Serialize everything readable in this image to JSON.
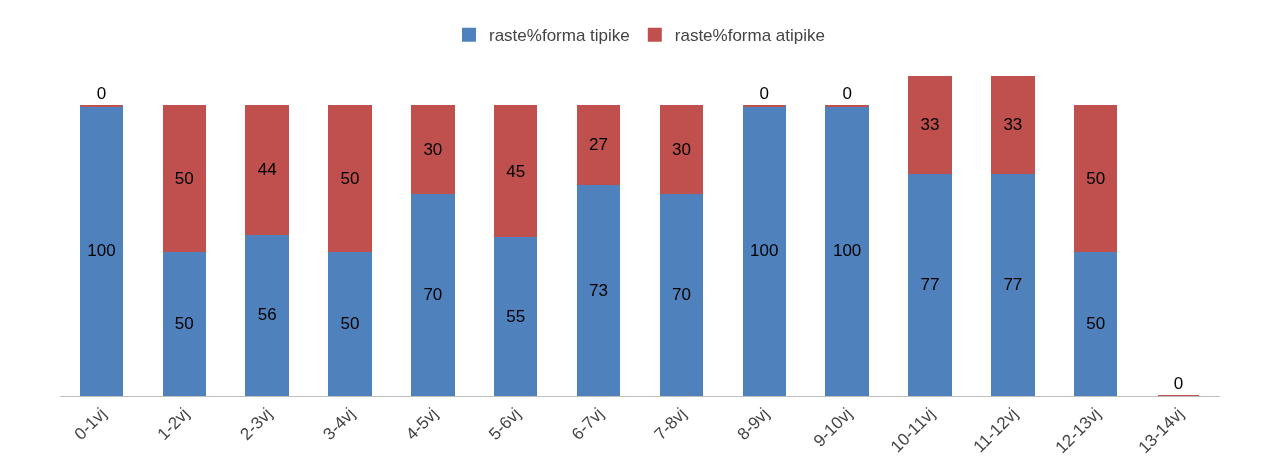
{
  "chart_data": {
    "type": "bar",
    "stacked": true,
    "legend": "top",
    "categories": [
      "0-1vj",
      "1-2vj",
      "2-3vj",
      "3-4vj",
      "4-5vj",
      "5-6vj",
      "6-7vj",
      "7-8vj",
      "8-9vj",
      "9-10vj",
      "10-11vj",
      "11-12vj",
      "12-13vj",
      "13-14vj"
    ],
    "series": [
      {
        "name": "raste%forma tipike",
        "color": "#4f81bd",
        "values": [
          100,
          50,
          56,
          50,
          70,
          55,
          73,
          70,
          100,
          100,
          77,
          77,
          50,
          0
        ],
        "value_labels": [
          "100",
          "50",
          "56",
          "50",
          "70",
          "55",
          "73",
          "70",
          "100",
          "100",
          "77",
          "77",
          "50",
          null
        ]
      },
      {
        "name": "raste%forma atipike",
        "color": "#c0504d",
        "values": [
          0,
          50,
          44,
          50,
          30,
          45,
          27,
          30,
          0,
          0,
          33,
          33,
          50,
          0
        ],
        "value_labels": [
          "0",
          "50",
          "44",
          "50",
          "30",
          "45",
          "27",
          "30",
          "0",
          "0",
          "33",
          "33",
          "50",
          "0"
        ]
      }
    ]
  }
}
